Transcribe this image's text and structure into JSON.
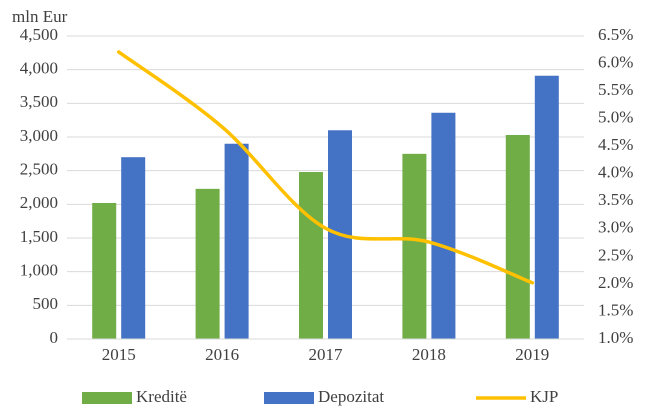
{
  "chart_data": {
    "type": "bar-line",
    "y_axis_label": "mln Eur",
    "categories": [
      "2015",
      "2016",
      "2017",
      "2018",
      "2019"
    ],
    "series": [
      {
        "name": "Kreditë",
        "color": "#70ad47",
        "type": "bar",
        "values": [
          2020,
          2230,
          2480,
          2750,
          3030
        ]
      },
      {
        "name": "Depozitat",
        "color": "#4472c4",
        "type": "bar",
        "values": [
          2700,
          2900,
          3100,
          3360,
          3910
        ]
      },
      {
        "name": "KJP",
        "color": "#ffc000",
        "type": "line",
        "axis": "y2",
        "values": [
          6.21,
          4.85,
          3.01,
          2.76,
          2.02
        ]
      }
    ],
    "ylim": [
      0,
      4500
    ],
    "yticks": [
      0,
      500,
      {
        "value": 1000,
        "label": "1,000"
      },
      {
        "value": 1500,
        "label": "1,500"
      },
      {
        "value": 2000,
        "label": "2,000"
      },
      {
        "value": 2500,
        "label": "2,500"
      },
      {
        "value": 3000,
        "label": "3,000"
      },
      {
        "value": 3500,
        "label": "3,500"
      },
      {
        "value": 4000,
        "label": "4,000"
      },
      {
        "value": 4500,
        "label": "4,500"
      }
    ],
    "y2lim": [
      1.0,
      6.5
    ],
    "y2ticks": [
      {
        "value": 1.0,
        "label": "1.0%"
      },
      {
        "value": 1.5,
        "label": "1.5%"
      },
      {
        "value": 2.0,
        "label": "2.0%"
      },
      {
        "value": 2.5,
        "label": "2.5%"
      },
      {
        "value": 3.0,
        "label": "3.0%"
      },
      {
        "value": 3.5,
        "label": "3.5%"
      },
      {
        "value": 4.0,
        "label": "4.0%"
      },
      {
        "value": 4.5,
        "label": "4.5%"
      },
      {
        "value": 5.0,
        "label": "5.0%"
      },
      {
        "value": 5.5,
        "label": "5.5%"
      },
      {
        "value": 6.0,
        "label": "6.0%"
      },
      {
        "value": 6.5,
        "label": "6.5%"
      }
    ],
    "grid": true,
    "legend": "bottom"
  }
}
